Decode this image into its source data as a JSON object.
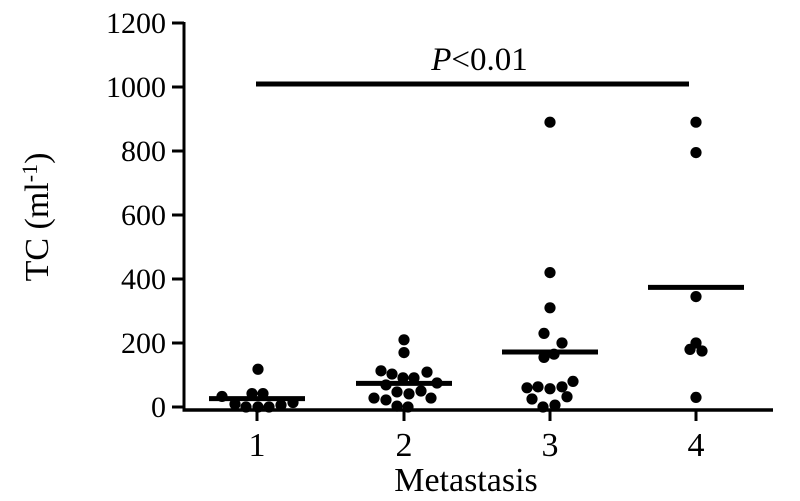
{
  "figure": {
    "background": "#ffffff",
    "foreground": "#000000"
  },
  "chart_data": {
    "type": "scatter",
    "subtype": "dot-plot-with-mean-lines",
    "title": "",
    "xlabel": "Metastasis",
    "ylabel": "TC (ml⁻¹)",
    "ylabel_parts": {
      "pre": "TC (ml",
      "sup": "-1",
      "post": ")"
    },
    "ylim": [
      0,
      1200
    ],
    "yticks": [
      0,
      200,
      400,
      600,
      800,
      1000,
      1200
    ],
    "categories": [
      "1",
      "2",
      "3",
      "4"
    ],
    "grid": false,
    "legend": false,
    "marker_color": "#000000",
    "significance": {
      "label": "P<0.01",
      "label_italic": "P",
      "label_rest": "<0.01",
      "y_value": 1000,
      "from_category": "1",
      "to_category": "4"
    },
    "groups": [
      {
        "category": "1",
        "n": 10,
        "mean": 26,
        "points": [
          {
            "v": 118,
            "dx": 1
          },
          {
            "v": 42,
            "dx": -5
          },
          {
            "v": 42,
            "dx": 6
          },
          {
            "v": 33,
            "dx": -35
          },
          {
            "v": 14,
            "dx": 36
          },
          {
            "v": 9,
            "dx": -22
          },
          {
            "v": 6,
            "dx": 24
          },
          {
            "v": 0,
            "dx": -11
          },
          {
            "v": 0,
            "dx": 1
          },
          {
            "v": 0,
            "dx": 12
          }
        ]
      },
      {
        "category": "2",
        "n": 17,
        "mean": 74,
        "points": [
          {
            "v": 210,
            "dx": 0
          },
          {
            "v": 170,
            "dx": 0
          },
          {
            "v": 113,
            "dx": -23
          },
          {
            "v": 109,
            "dx": 23
          },
          {
            "v": 103,
            "dx": -12
          },
          {
            "v": 91,
            "dx": -1
          },
          {
            "v": 91,
            "dx": 10
          },
          {
            "v": 75,
            "dx": 33
          },
          {
            "v": 69,
            "dx": -18
          },
          {
            "v": 50,
            "dx": 17
          },
          {
            "v": 47,
            "dx": -7
          },
          {
            "v": 41,
            "dx": 5
          },
          {
            "v": 28,
            "dx": -30
          },
          {
            "v": 28,
            "dx": 27
          },
          {
            "v": 22,
            "dx": -18
          },
          {
            "v": 3,
            "dx": -7
          },
          {
            "v": 0,
            "dx": 4
          }
        ]
      },
      {
        "category": "3",
        "n": 16,
        "mean": 172,
        "points": [
          {
            "v": 890,
            "dx": 0
          },
          {
            "v": 420,
            "dx": 0
          },
          {
            "v": 310,
            "dx": 0
          },
          {
            "v": 230,
            "dx": -6
          },
          {
            "v": 200,
            "dx": 12
          },
          {
            "v": 165,
            "dx": 4
          },
          {
            "v": 155,
            "dx": -6
          },
          {
            "v": 80,
            "dx": 23
          },
          {
            "v": 63,
            "dx": -12
          },
          {
            "v": 63,
            "dx": 12
          },
          {
            "v": 60,
            "dx": -23
          },
          {
            "v": 57,
            "dx": 0
          },
          {
            "v": 32,
            "dx": 17
          },
          {
            "v": 25,
            "dx": -18
          },
          {
            "v": 6,
            "dx": 5
          },
          {
            "v": 0,
            "dx": -7
          }
        ]
      },
      {
        "category": "4",
        "n": 7,
        "mean": 374,
        "points": [
          {
            "v": 890,
            "dx": 0
          },
          {
            "v": 795,
            "dx": 0
          },
          {
            "v": 345,
            "dx": 0
          },
          {
            "v": 200,
            "dx": 0
          },
          {
            "v": 180,
            "dx": -6
          },
          {
            "v": 175,
            "dx": 6
          },
          {
            "v": 30,
            "dx": 0
          }
        ]
      }
    ]
  }
}
